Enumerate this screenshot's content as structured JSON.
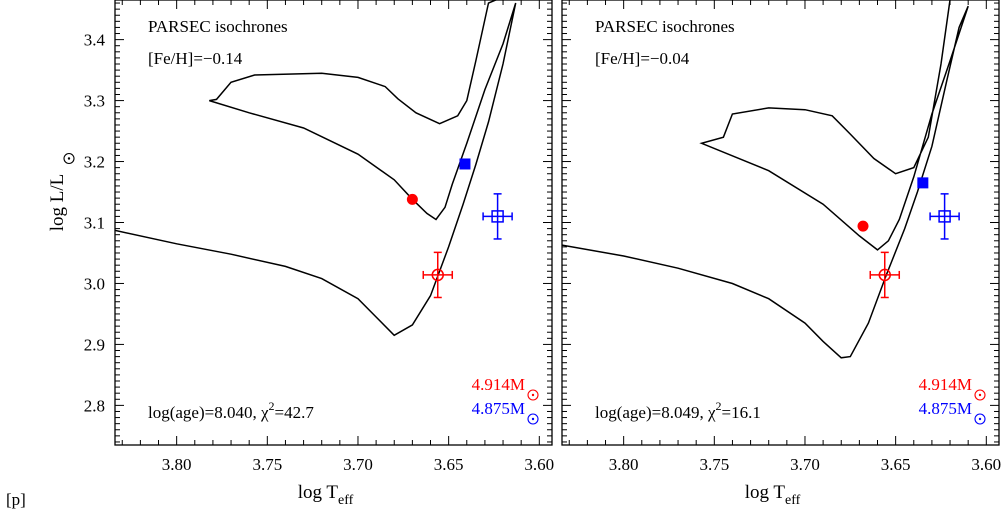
{
  "page_label": "[p]",
  "chart_data": [
    {
      "type": "line",
      "title": "PARSEC isochrones",
      "subtitle": "[Fe/H]=−0.14",
      "age_label": "log(age)=8.040, χ",
      "age_sup": "2",
      "chi2_value": "=42.7",
      "xlabel": "log T",
      "xlabel_sub": "eff",
      "ylabel": "log L/L",
      "xlim": [
        3.834,
        3.593
      ],
      "ylim": [
        2.735,
        3.465
      ],
      "xticks": [
        3.8,
        3.75,
        3.7,
        3.65,
        3.6
      ],
      "xtick_labels": [
        "3.80",
        "3.75",
        "3.70",
        "3.65",
        "3.60"
      ],
      "yticks": [
        2.8,
        2.9,
        3.0,
        3.1,
        3.2,
        3.3,
        3.4
      ],
      "ytick_labels": [
        "2.8",
        "2.9",
        "3.0",
        "3.1",
        "3.2",
        "3.3",
        "3.4"
      ],
      "isochrone": {
        "x": [
          3.834,
          3.8,
          3.77,
          3.74,
          3.72,
          3.7,
          3.69,
          3.68,
          3.67,
          3.66,
          3.65,
          3.642,
          3.635,
          3.628,
          3.62,
          3.613,
          3.62,
          3.63,
          3.64,
          3.648,
          3.652,
          3.657,
          3.662,
          3.67,
          3.68,
          3.7,
          3.73,
          3.76,
          3.782,
          3.778,
          3.77,
          3.757,
          3.72,
          3.7,
          3.685,
          3.678,
          3.668,
          3.655,
          3.645,
          3.64,
          3.635,
          3.628,
          3.62
        ],
        "y": [
          3.087,
          3.065,
          3.048,
          3.028,
          3.008,
          2.975,
          2.945,
          2.915,
          2.932,
          2.98,
          3.06,
          3.13,
          3.195,
          3.265,
          3.36,
          3.46,
          3.393,
          3.318,
          3.23,
          3.163,
          3.125,
          3.105,
          3.115,
          3.138,
          3.17,
          3.212,
          3.255,
          3.28,
          3.3,
          3.302,
          3.33,
          3.342,
          3.345,
          3.338,
          3.323,
          3.303,
          3.28,
          3.262,
          3.275,
          3.3,
          3.365,
          3.46,
          3.47
        ]
      },
      "points": [
        {
          "name": "4.914M",
          "x": 3.67,
          "y": 3.138,
          "color": "#ff0000",
          "marker": "filled-circle"
        },
        {
          "name": "4.875M",
          "x": 3.641,
          "y": 3.196,
          "color": "#0000ff",
          "marker": "filled-square"
        }
      ],
      "observed": [
        {
          "x": 3.656,
          "y": 3.014,
          "xerr": 0.008,
          "yerr": 0.037,
          "color": "#ff0000",
          "marker": "open-circle"
        },
        {
          "x": 3.623,
          "y": 3.11,
          "xerr": 0.008,
          "yerr": 0.037,
          "color": "#0000ff",
          "marker": "open-square"
        }
      ],
      "legend": [
        {
          "label": "4.914M",
          "color": "#ff0000"
        },
        {
          "label": "4.875M",
          "color": "#0000ff"
        }
      ],
      "legend_placement": "bottom-right"
    },
    {
      "type": "line",
      "title": "PARSEC isochrones",
      "subtitle": "[Fe/H]=−0.04",
      "age_label": "log(age)=8.049, χ",
      "age_sup": "2",
      "chi2_value": "=16.1",
      "xlabel": "log T",
      "xlabel_sub": "eff",
      "ylabel": "",
      "xlim": [
        3.834,
        3.593
      ],
      "ylim": [
        2.735,
        3.465
      ],
      "xticks": [
        3.8,
        3.75,
        3.7,
        3.65,
        3.6
      ],
      "xtick_labels": [
        "3.80",
        "3.75",
        "3.70",
        "3.65",
        "3.60"
      ],
      "yticks": [
        2.8,
        2.9,
        3.0,
        3.1,
        3.2,
        3.3,
        3.4
      ],
      "ytick_labels": [],
      "isochrone": {
        "x": [
          3.834,
          3.8,
          3.77,
          3.74,
          3.72,
          3.7,
          3.69,
          3.68,
          3.675,
          3.665,
          3.655,
          3.645,
          3.638,
          3.63,
          3.622,
          3.615,
          3.61,
          3.62,
          3.63,
          3.64,
          3.648,
          3.654,
          3.66,
          3.67,
          3.69,
          3.72,
          3.757,
          3.745,
          3.74,
          3.72,
          3.7,
          3.685,
          3.675,
          3.662,
          3.65,
          3.64,
          3.632,
          3.625,
          3.62
        ],
        "y": [
          3.063,
          3.045,
          3.025,
          3.0,
          2.975,
          2.935,
          2.905,
          2.878,
          2.88,
          2.935,
          3.015,
          3.09,
          3.15,
          3.225,
          3.33,
          3.42,
          3.455,
          3.365,
          3.278,
          3.175,
          3.105,
          3.07,
          3.055,
          3.078,
          3.13,
          3.185,
          3.23,
          3.24,
          3.278,
          3.288,
          3.285,
          3.275,
          3.245,
          3.205,
          3.18,
          3.19,
          3.24,
          3.36,
          3.465
        ]
      },
      "points": [
        {
          "name": "4.914M",
          "x": 3.668,
          "y": 3.094,
          "color": "#ff0000",
          "marker": "filled-circle"
        },
        {
          "name": "4.875M",
          "x": 3.635,
          "y": 3.165,
          "color": "#0000ff",
          "marker": "filled-square"
        }
      ],
      "observed": [
        {
          "x": 3.656,
          "y": 3.014,
          "xerr": 0.008,
          "yerr": 0.037,
          "color": "#ff0000",
          "marker": "open-circle"
        },
        {
          "x": 3.623,
          "y": 3.11,
          "xerr": 0.008,
          "yerr": 0.037,
          "color": "#0000ff",
          "marker": "open-square"
        }
      ],
      "legend": [
        {
          "label": "4.914M",
          "color": "#ff0000"
        },
        {
          "label": "4.875M",
          "color": "#0000ff"
        }
      ],
      "legend_placement": "bottom-right"
    }
  ]
}
